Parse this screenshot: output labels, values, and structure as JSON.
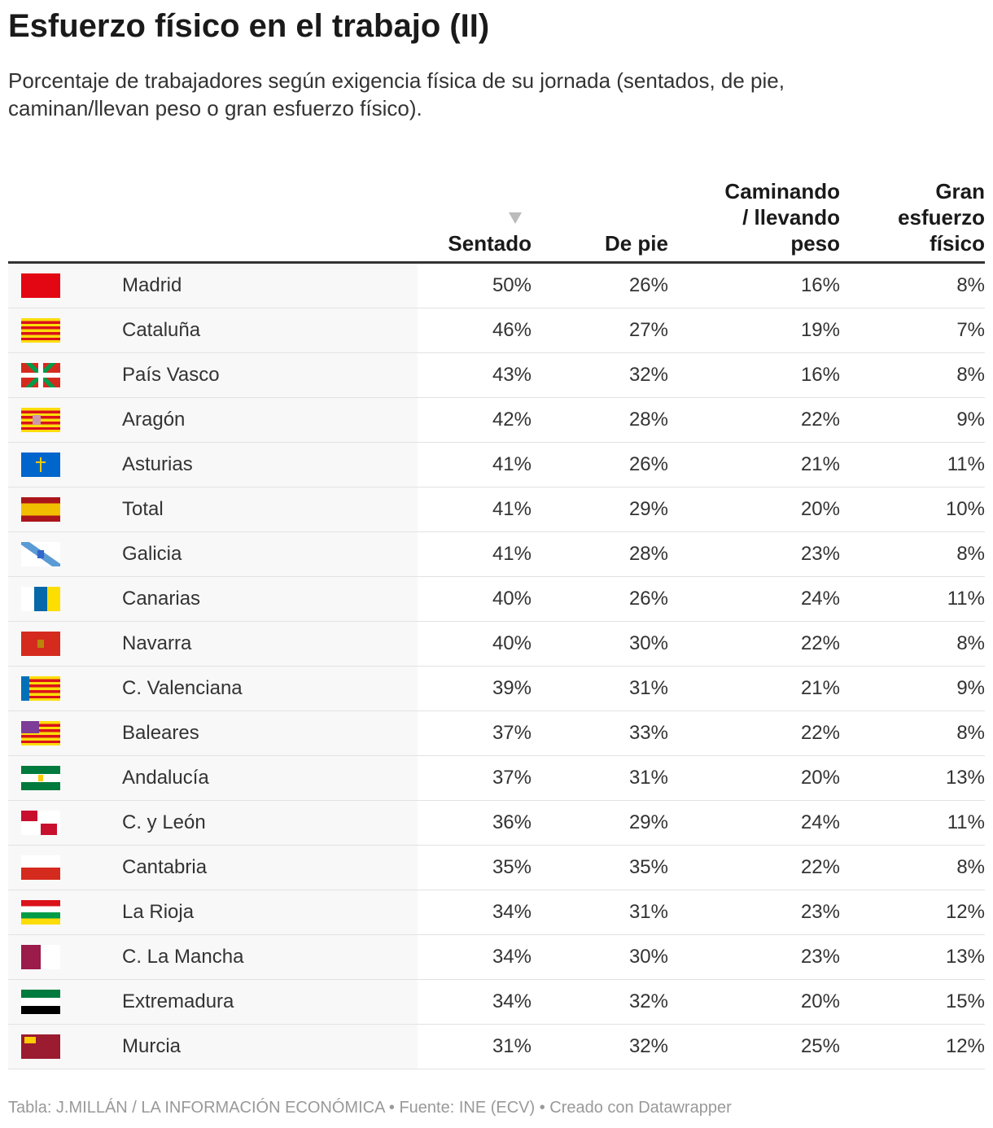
{
  "header": {
    "title": "Esfuerzo físico en el trabajo (II)",
    "subtitle": "Porcentaje de trabajadores según exigencia física de su jornada (sentados, de pie, caminan/llevan peso o gran esfuerzo físico)."
  },
  "table": {
    "columns": [
      "Sentado",
      "De pie",
      "Caminando / llevando peso",
      "Gran esfuerzo físico"
    ],
    "rows": [
      [
        "Madrid",
        "50%",
        "26%",
        "16%",
        "8%"
      ],
      [
        "Cataluña",
        "46%",
        "27%",
        "19%",
        "7%"
      ],
      [
        "País Vasco",
        "43%",
        "32%",
        "16%",
        "8%"
      ],
      [
        "Aragón",
        "42%",
        "28%",
        "22%",
        "9%"
      ],
      [
        "Asturias",
        "41%",
        "26%",
        "21%",
        "11%"
      ],
      [
        "Total",
        "41%",
        "29%",
        "20%",
        "10%"
      ],
      [
        "Galicia",
        "41%",
        "28%",
        "23%",
        "8%"
      ],
      [
        "Canarias",
        "40%",
        "26%",
        "24%",
        "11%"
      ],
      [
        "Navarra",
        "40%",
        "30%",
        "22%",
        "8%"
      ],
      [
        "C. Valenciana",
        "39%",
        "31%",
        "21%",
        "9%"
      ],
      [
        "Baleares",
        "37%",
        "33%",
        "22%",
        "8%"
      ],
      [
        "Andalucía",
        "37%",
        "31%",
        "20%",
        "13%"
      ],
      [
        "C. y León",
        "36%",
        "29%",
        "24%",
        "11%"
      ],
      [
        "Cantabria",
        "35%",
        "35%",
        "22%",
        "8%"
      ],
      [
        "La Rioja",
        "34%",
        "31%",
        "23%",
        "12%"
      ],
      [
        "C. La Mancha",
        "34%",
        "30%",
        "23%",
        "13%"
      ],
      [
        "Extremadura",
        "34%",
        "32%",
        "20%",
        "15%"
      ],
      [
        "Murcia",
        "31%",
        "32%",
        "25%",
        "12%"
      ]
    ]
  },
  "footer": "Tabla: J.MILLÁN / LA INFORMACIÓN ECONÓMICA • Fuente: INE (ECV) • Creado con Datawrapper"
}
